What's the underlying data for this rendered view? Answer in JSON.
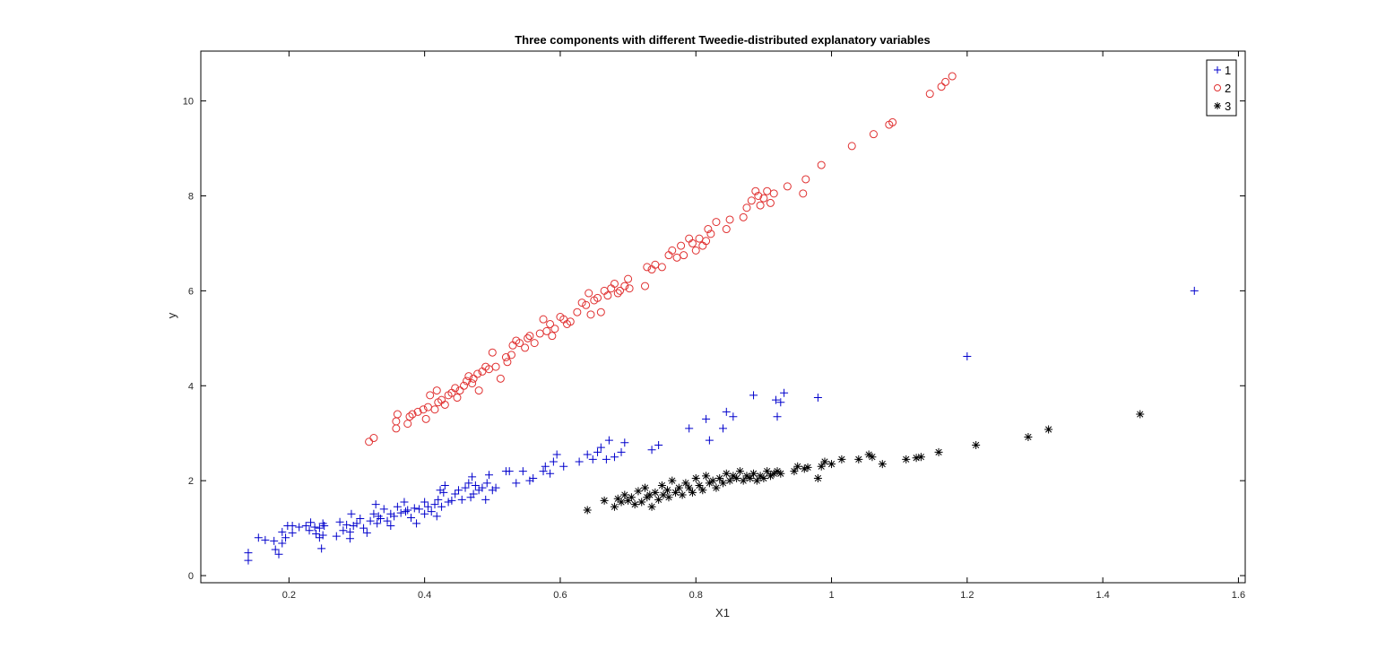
{
  "chart_data": {
    "type": "scatter",
    "title": "Three components with different Tweedie-distributed explanatory variables",
    "xlabel": "X1",
    "ylabel": "y",
    "xlim": [
      0.07,
      1.61
    ],
    "ylim": [
      -0.15,
      11.05
    ],
    "xticks": [
      0.2,
      0.4,
      0.6,
      0.8,
      1,
      1.2,
      1.4,
      1.6
    ],
    "yticks": [
      0,
      2,
      4,
      6,
      8,
      10
    ],
    "legend_position": "top-right",
    "grid": false,
    "series": [
      {
        "name": "1",
        "marker": "plus",
        "color": "#0000cc",
        "points": [
          [
            0.14,
            0.32
          ],
          [
            0.14,
            0.48
          ],
          [
            0.155,
            0.8
          ],
          [
            0.165,
            0.75
          ],
          [
            0.178,
            0.73
          ],
          [
            0.18,
            0.55
          ],
          [
            0.185,
            0.45
          ],
          [
            0.19,
            0.68
          ],
          [
            0.19,
            0.92
          ],
          [
            0.195,
            0.8
          ],
          [
            0.198,
            1.05
          ],
          [
            0.205,
            1.05
          ],
          [
            0.205,
            0.9
          ],
          [
            0.215,
            1.02
          ],
          [
            0.225,
            1.05
          ],
          [
            0.23,
            0.95
          ],
          [
            0.232,
            1.12
          ],
          [
            0.238,
            1.02
          ],
          [
            0.24,
            0.88
          ],
          [
            0.245,
            0.8
          ],
          [
            0.245,
            1.0
          ],
          [
            0.248,
            0.57
          ],
          [
            0.25,
            1.1
          ],
          [
            0.25,
            0.85
          ],
          [
            0.252,
            1.05
          ],
          [
            0.27,
            0.83
          ],
          [
            0.275,
            1.13
          ],
          [
            0.28,
            0.95
          ],
          [
            0.285,
            1.07
          ],
          [
            0.29,
            0.78
          ],
          [
            0.29,
            0.92
          ],
          [
            0.292,
            1.3
          ],
          [
            0.295,
            1.05
          ],
          [
            0.3,
            1.1
          ],
          [
            0.305,
            1.2
          ],
          [
            0.31,
            1.0
          ],
          [
            0.315,
            0.9
          ],
          [
            0.32,
            1.15
          ],
          [
            0.325,
            1.3
          ],
          [
            0.328,
            1.5
          ],
          [
            0.33,
            1.1
          ],
          [
            0.332,
            1.25
          ],
          [
            0.335,
            1.2
          ],
          [
            0.34,
            1.4
          ],
          [
            0.345,
            1.15
          ],
          [
            0.35,
            1.3
          ],
          [
            0.35,
            1.05
          ],
          [
            0.355,
            1.25
          ],
          [
            0.36,
            1.45
          ],
          [
            0.365,
            1.32
          ],
          [
            0.37,
            1.55
          ],
          [
            0.372,
            1.35
          ],
          [
            0.375,
            1.38
          ],
          [
            0.38,
            1.22
          ],
          [
            0.385,
            1.42
          ],
          [
            0.388,
            1.1
          ],
          [
            0.392,
            1.4
          ],
          [
            0.4,
            1.3
          ],
          [
            0.4,
            1.55
          ],
          [
            0.405,
            1.45
          ],
          [
            0.41,
            1.35
          ],
          [
            0.415,
            1.5
          ],
          [
            0.418,
            1.25
          ],
          [
            0.42,
            1.6
          ],
          [
            0.423,
            1.8
          ],
          [
            0.425,
            1.45
          ],
          [
            0.428,
            1.75
          ],
          [
            0.43,
            1.9
          ],
          [
            0.435,
            1.55
          ],
          [
            0.44,
            1.58
          ],
          [
            0.445,
            1.72
          ],
          [
            0.45,
            1.8
          ],
          [
            0.455,
            1.6
          ],
          [
            0.46,
            1.85
          ],
          [
            0.465,
            1.95
          ],
          [
            0.468,
            1.65
          ],
          [
            0.47,
            2.08
          ],
          [
            0.472,
            1.72
          ],
          [
            0.475,
            1.9
          ],
          [
            0.48,
            1.8
          ],
          [
            0.485,
            1.85
          ],
          [
            0.49,
            1.6
          ],
          [
            0.492,
            1.95
          ],
          [
            0.495,
            2.12
          ],
          [
            0.5,
            1.8
          ],
          [
            0.505,
            1.85
          ],
          [
            0.52,
            2.2
          ],
          [
            0.525,
            2.2
          ],
          [
            0.535,
            1.95
          ],
          [
            0.545,
            2.2
          ],
          [
            0.555,
            2.0
          ],
          [
            0.56,
            2.05
          ],
          [
            0.575,
            2.2
          ],
          [
            0.578,
            2.3
          ],
          [
            0.585,
            2.15
          ],
          [
            0.59,
            2.4
          ],
          [
            0.595,
            2.55
          ],
          [
            0.605,
            2.3
          ],
          [
            0.628,
            2.4
          ],
          [
            0.64,
            2.55
          ],
          [
            0.648,
            2.45
          ],
          [
            0.655,
            2.6
          ],
          [
            0.66,
            2.7
          ],
          [
            0.668,
            2.45
          ],
          [
            0.672,
            2.85
          ],
          [
            0.68,
            2.5
          ],
          [
            0.69,
            2.6
          ],
          [
            0.695,
            2.8
          ],
          [
            0.735,
            2.65
          ],
          [
            0.745,
            2.75
          ],
          [
            0.79,
            3.1
          ],
          [
            0.815,
            3.3
          ],
          [
            0.82,
            2.85
          ],
          [
            0.84,
            3.1
          ],
          [
            0.845,
            3.45
          ],
          [
            0.855,
            3.35
          ],
          [
            0.885,
            3.8
          ],
          [
            0.918,
            3.7
          ],
          [
            0.92,
            3.35
          ],
          [
            0.925,
            3.65
          ],
          [
            0.93,
            3.85
          ],
          [
            0.98,
            3.75
          ],
          [
            1.2,
            4.62
          ],
          [
            1.535,
            6.0
          ]
        ]
      },
      {
        "name": "2",
        "marker": "circle",
        "color": "#e03030",
        "points": [
          [
            0.318,
            2.82
          ],
          [
            0.325,
            2.9
          ],
          [
            0.358,
            3.1
          ],
          [
            0.358,
            3.25
          ],
          [
            0.36,
            3.4
          ],
          [
            0.375,
            3.2
          ],
          [
            0.378,
            3.35
          ],
          [
            0.382,
            3.4
          ],
          [
            0.39,
            3.45
          ],
          [
            0.398,
            3.5
          ],
          [
            0.402,
            3.3
          ],
          [
            0.405,
            3.55
          ],
          [
            0.408,
            3.8
          ],
          [
            0.415,
            3.5
          ],
          [
            0.418,
            3.9
          ],
          [
            0.42,
            3.65
          ],
          [
            0.425,
            3.7
          ],
          [
            0.43,
            3.6
          ],
          [
            0.435,
            3.8
          ],
          [
            0.44,
            3.85
          ],
          [
            0.445,
            3.95
          ],
          [
            0.448,
            3.75
          ],
          [
            0.452,
            3.9
          ],
          [
            0.458,
            4.0
          ],
          [
            0.462,
            4.1
          ],
          [
            0.465,
            4.2
          ],
          [
            0.47,
            4.05
          ],
          [
            0.472,
            4.15
          ],
          [
            0.478,
            4.25
          ],
          [
            0.48,
            3.9
          ],
          [
            0.485,
            4.3
          ],
          [
            0.49,
            4.4
          ],
          [
            0.495,
            4.35
          ],
          [
            0.5,
            4.7
          ],
          [
            0.505,
            4.4
          ],
          [
            0.512,
            4.15
          ],
          [
            0.52,
            4.6
          ],
          [
            0.522,
            4.5
          ],
          [
            0.528,
            4.65
          ],
          [
            0.53,
            4.85
          ],
          [
            0.535,
            4.95
          ],
          [
            0.54,
            4.9
          ],
          [
            0.548,
            4.8
          ],
          [
            0.552,
            5.0
          ],
          [
            0.555,
            5.05
          ],
          [
            0.562,
            4.9
          ],
          [
            0.57,
            5.1
          ],
          [
            0.575,
            5.4
          ],
          [
            0.58,
            5.15
          ],
          [
            0.585,
            5.3
          ],
          [
            0.588,
            5.05
          ],
          [
            0.592,
            5.2
          ],
          [
            0.6,
            5.45
          ],
          [
            0.605,
            5.4
          ],
          [
            0.61,
            5.3
          ],
          [
            0.615,
            5.35
          ],
          [
            0.625,
            5.55
          ],
          [
            0.632,
            5.75
          ],
          [
            0.638,
            5.7
          ],
          [
            0.642,
            5.95
          ],
          [
            0.645,
            5.5
          ],
          [
            0.65,
            5.8
          ],
          [
            0.655,
            5.85
          ],
          [
            0.66,
            5.55
          ],
          [
            0.665,
            6.0
          ],
          [
            0.67,
            5.9
          ],
          [
            0.675,
            6.05
          ],
          [
            0.68,
            6.15
          ],
          [
            0.685,
            5.95
          ],
          [
            0.688,
            6.0
          ],
          [
            0.695,
            6.1
          ],
          [
            0.7,
            6.25
          ],
          [
            0.702,
            6.05
          ],
          [
            0.725,
            6.1
          ],
          [
            0.728,
            6.5
          ],
          [
            0.735,
            6.45
          ],
          [
            0.74,
            6.55
          ],
          [
            0.75,
            6.5
          ],
          [
            0.76,
            6.75
          ],
          [
            0.765,
            6.85
          ],
          [
            0.772,
            6.7
          ],
          [
            0.778,
            6.95
          ],
          [
            0.782,
            6.75
          ],
          [
            0.79,
            7.1
          ],
          [
            0.795,
            7.0
          ],
          [
            0.8,
            6.85
          ],
          [
            0.805,
            7.1
          ],
          [
            0.81,
            6.95
          ],
          [
            0.815,
            7.05
          ],
          [
            0.818,
            7.3
          ],
          [
            0.822,
            7.2
          ],
          [
            0.83,
            7.45
          ],
          [
            0.845,
            7.3
          ],
          [
            0.85,
            7.5
          ],
          [
            0.87,
            7.55
          ],
          [
            0.875,
            7.75
          ],
          [
            0.882,
            7.9
          ],
          [
            0.888,
            8.1
          ],
          [
            0.892,
            8.0
          ],
          [
            0.895,
            7.8
          ],
          [
            0.9,
            7.95
          ],
          [
            0.905,
            8.1
          ],
          [
            0.91,
            7.85
          ],
          [
            0.915,
            8.05
          ],
          [
            0.935,
            8.2
          ],
          [
            0.958,
            8.05
          ],
          [
            0.962,
            8.35
          ],
          [
            0.985,
            8.65
          ],
          [
            1.03,
            9.05
          ],
          [
            1.062,
            9.3
          ],
          [
            1.085,
            9.5
          ],
          [
            1.09,
            9.55
          ],
          [
            1.145,
            10.15
          ],
          [
            1.162,
            10.3
          ],
          [
            1.168,
            10.4
          ],
          [
            1.178,
            10.52
          ]
        ]
      },
      {
        "name": "3",
        "marker": "asterisk",
        "color": "#000000",
        "points": [
          [
            0.64,
            1.38
          ],
          [
            0.665,
            1.58
          ],
          [
            0.68,
            1.45
          ],
          [
            0.685,
            1.62
          ],
          [
            0.69,
            1.55
          ],
          [
            0.695,
            1.7
          ],
          [
            0.7,
            1.58
          ],
          [
            0.705,
            1.65
          ],
          [
            0.71,
            1.5
          ],
          [
            0.715,
            1.78
          ],
          [
            0.72,
            1.55
          ],
          [
            0.725,
            1.85
          ],
          [
            0.728,
            1.65
          ],
          [
            0.732,
            1.7
          ],
          [
            0.735,
            1.45
          ],
          [
            0.74,
            1.75
          ],
          [
            0.745,
            1.6
          ],
          [
            0.75,
            1.9
          ],
          [
            0.752,
            1.7
          ],
          [
            0.758,
            1.8
          ],
          [
            0.76,
            1.65
          ],
          [
            0.765,
            2.0
          ],
          [
            0.77,
            1.75
          ],
          [
            0.775,
            1.85
          ],
          [
            0.78,
            1.7
          ],
          [
            0.785,
            1.95
          ],
          [
            0.79,
            1.85
          ],
          [
            0.795,
            1.75
          ],
          [
            0.8,
            2.05
          ],
          [
            0.805,
            1.9
          ],
          [
            0.81,
            1.8
          ],
          [
            0.815,
            2.1
          ],
          [
            0.82,
            1.95
          ],
          [
            0.825,
            2.0
          ],
          [
            0.83,
            1.85
          ],
          [
            0.835,
            2.05
          ],
          [
            0.84,
            1.95
          ],
          [
            0.845,
            2.15
          ],
          [
            0.85,
            2.0
          ],
          [
            0.855,
            2.1
          ],
          [
            0.86,
            2.05
          ],
          [
            0.865,
            2.2
          ],
          [
            0.87,
            2.0
          ],
          [
            0.875,
            2.1
          ],
          [
            0.88,
            2.05
          ],
          [
            0.885,
            2.15
          ],
          [
            0.89,
            2.0
          ],
          [
            0.895,
            2.1
          ],
          [
            0.9,
            2.05
          ],
          [
            0.905,
            2.2
          ],
          [
            0.91,
            2.1
          ],
          [
            0.915,
            2.15
          ],
          [
            0.92,
            2.2
          ],
          [
            0.925,
            2.15
          ],
          [
            0.945,
            2.2
          ],
          [
            0.95,
            2.3
          ],
          [
            0.96,
            2.25
          ],
          [
            0.965,
            2.28
          ],
          [
            0.98,
            2.05
          ],
          [
            0.985,
            2.3
          ],
          [
            0.99,
            2.4
          ],
          [
            1.0,
            2.35
          ],
          [
            1.015,
            2.45
          ],
          [
            1.04,
            2.45
          ],
          [
            1.055,
            2.55
          ],
          [
            1.06,
            2.5
          ],
          [
            1.075,
            2.35
          ],
          [
            1.11,
            2.45
          ],
          [
            1.125,
            2.48
          ],
          [
            1.132,
            2.5
          ],
          [
            1.158,
            2.6
          ],
          [
            1.213,
            2.75
          ],
          [
            1.29,
            2.92
          ],
          [
            1.32,
            3.08
          ],
          [
            1.455,
            3.4
          ]
        ]
      }
    ]
  }
}
